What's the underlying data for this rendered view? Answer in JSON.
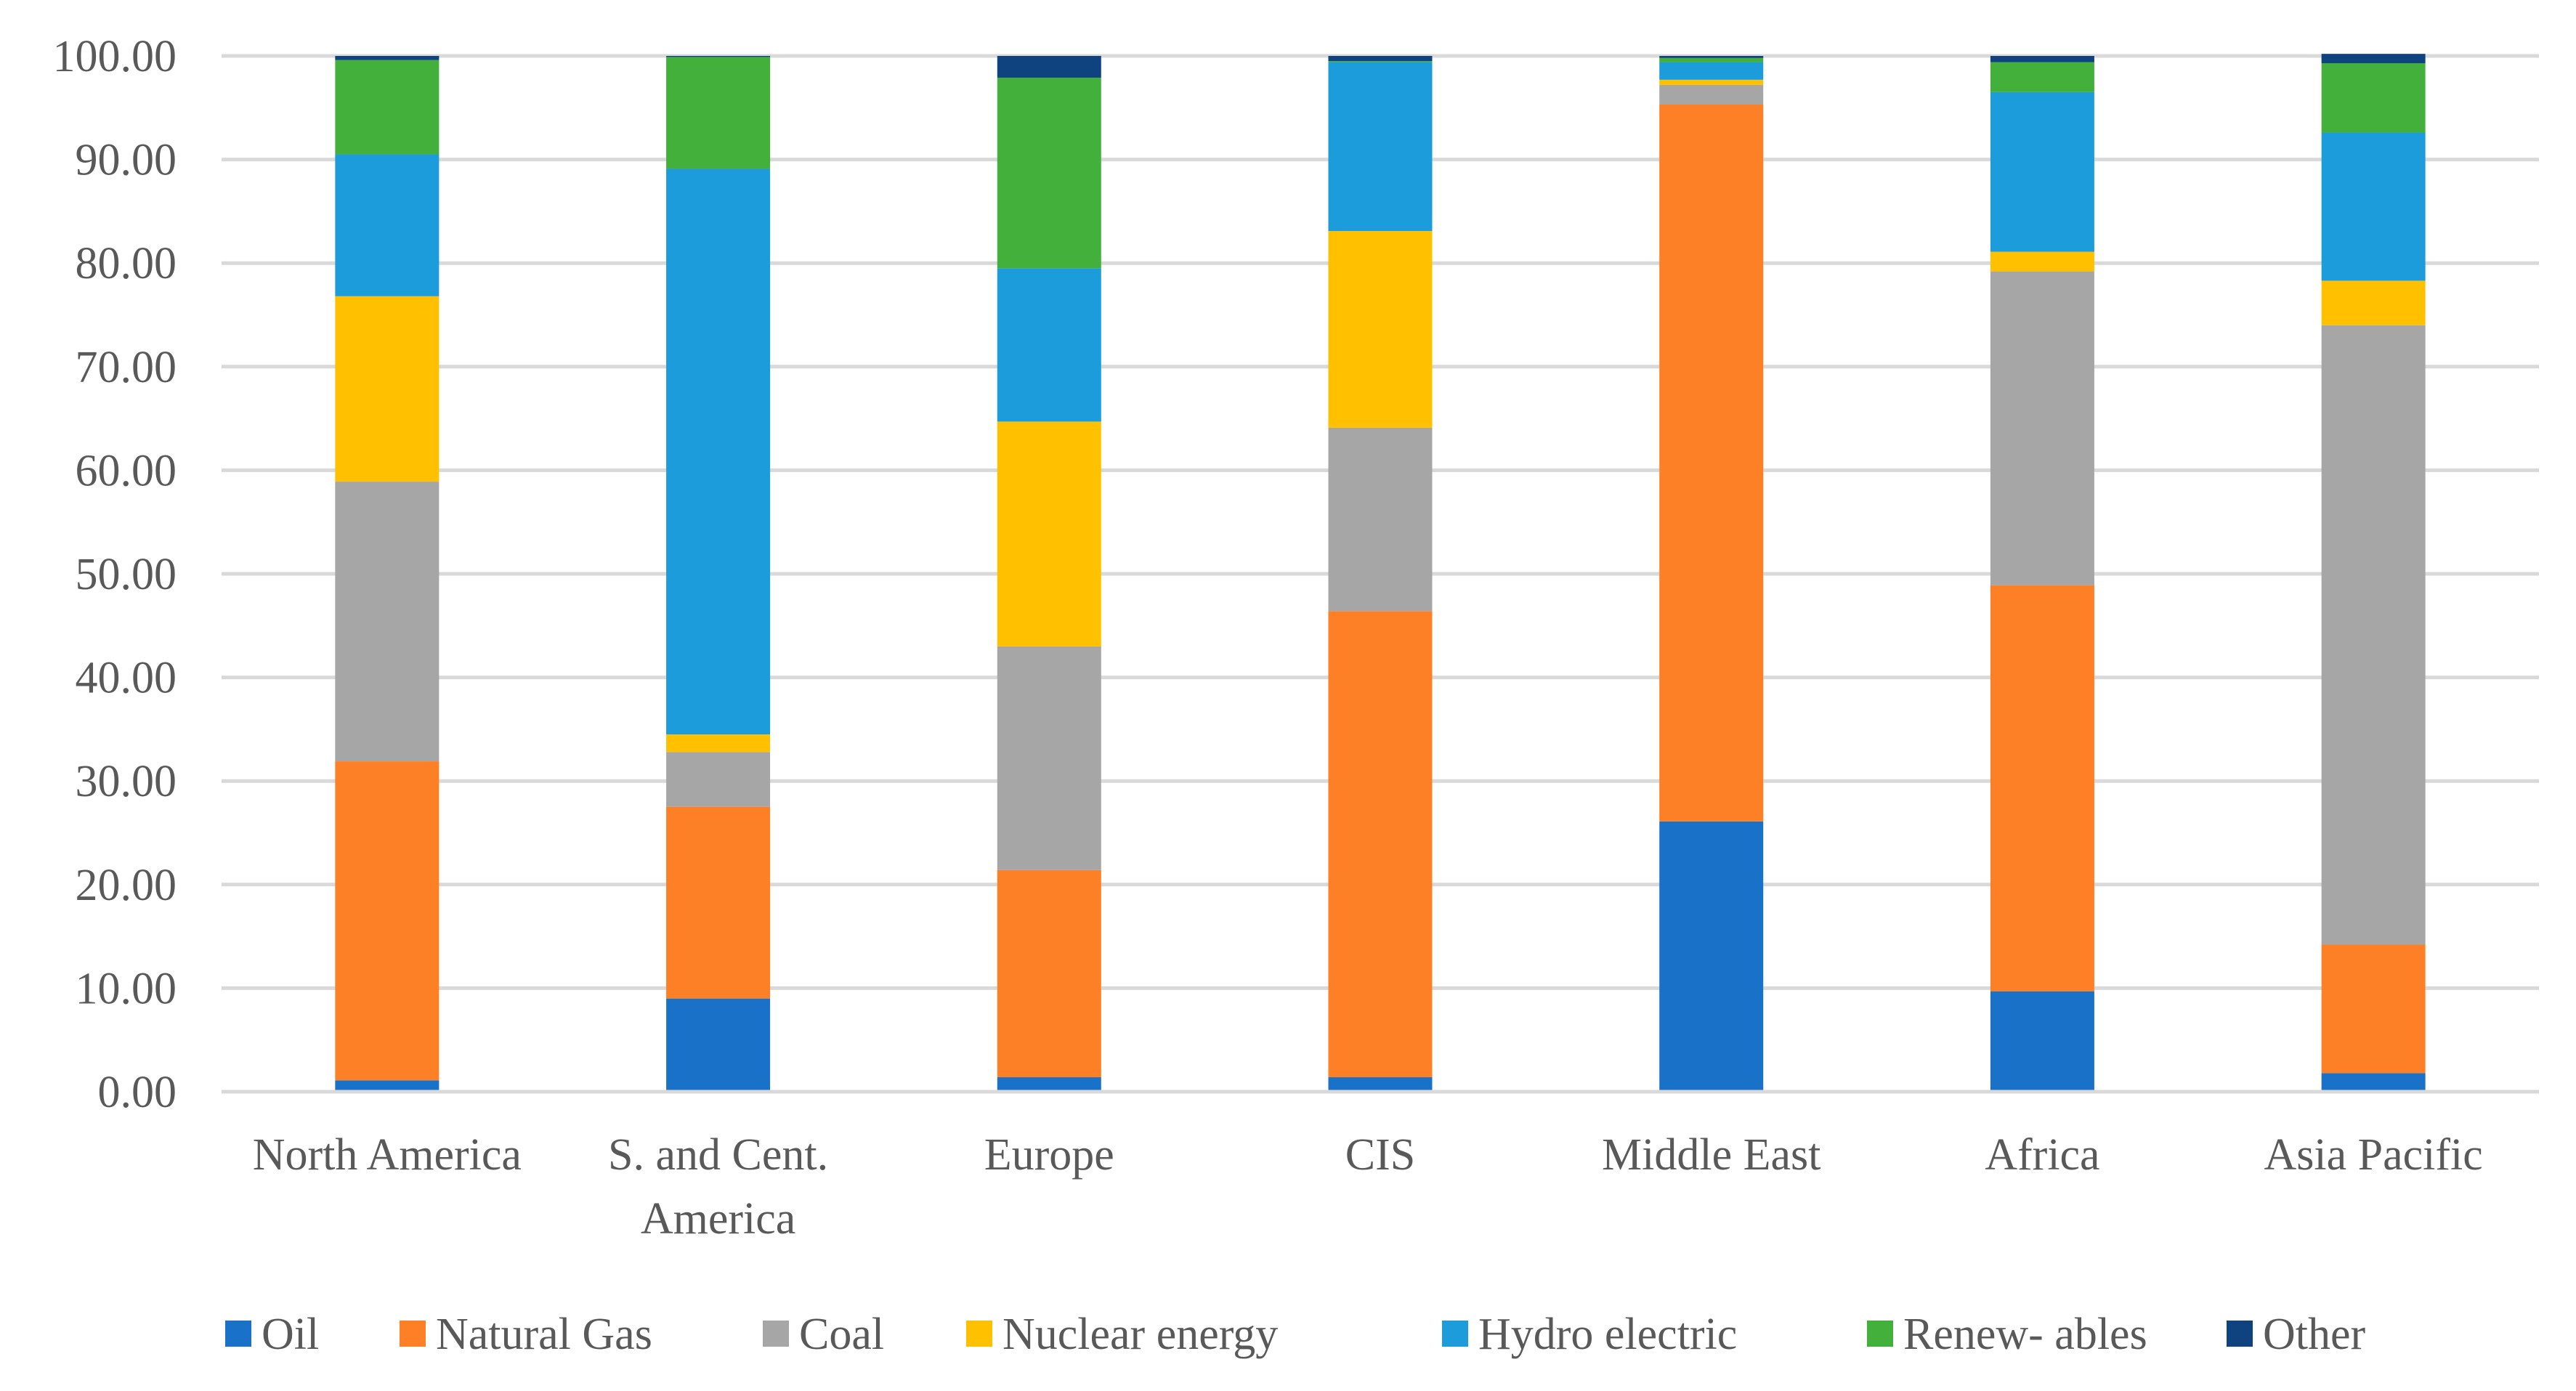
{
  "chart_data": {
    "type": "bar",
    "stacked": true,
    "title": "",
    "xlabel": "",
    "ylabel": "",
    "ylim": [
      0,
      100
    ],
    "yticks": [
      "0.00",
      "10.00",
      "20.00",
      "30.00",
      "40.00",
      "50.00",
      "60.00",
      "70.00",
      "80.00",
      "90.00",
      "100.00"
    ],
    "grid": true,
    "legend_position": "bottom",
    "categories": [
      [
        "North America"
      ],
      [
        "S. and Cent.",
        "America"
      ],
      [
        "Europe"
      ],
      [
        "CIS"
      ],
      [
        "Middle East"
      ],
      [
        "Africa"
      ],
      [
        "Asia Pacific"
      ]
    ],
    "category_names": [
      "North America",
      "S. and Cent. America",
      "Europe",
      "CIS",
      "Middle East",
      "Africa",
      "Asia Pacific"
    ],
    "series": [
      {
        "name": "Oil",
        "color": "#1a72c8",
        "values": [
          1.1,
          9.0,
          1.4,
          1.4,
          26.1,
          9.7,
          1.8
        ]
      },
      {
        "name": "Natural Gas",
        "color": "#fd7f26",
        "values": [
          30.8,
          18.5,
          20.0,
          45.0,
          69.2,
          39.2,
          12.4
        ]
      },
      {
        "name": "Coal",
        "color": "#a6a6a6",
        "values": [
          27.0,
          5.3,
          21.6,
          17.7,
          1.9,
          30.3,
          59.8
        ]
      },
      {
        "name": "Nuclear energy",
        "color": "#ffc000",
        "values": [
          17.9,
          1.7,
          21.7,
          19.0,
          0.5,
          1.9,
          4.3
        ]
      },
      {
        "name": "Hydro electric",
        "color": "#1c9cdb",
        "values": [
          13.7,
          54.6,
          14.8,
          16.3,
          1.7,
          15.4,
          14.3
        ]
      },
      {
        "name": "Renew- ables",
        "color": "#44b03c",
        "values": [
          9.1,
          10.8,
          18.4,
          0.1,
          0.4,
          2.9,
          6.7
        ]
      },
      {
        "name": "Other",
        "color": "#0e4380",
        "values": [
          0.4,
          0.1,
          2.1,
          0.5,
          0.2,
          0.6,
          0.9
        ]
      }
    ]
  }
}
